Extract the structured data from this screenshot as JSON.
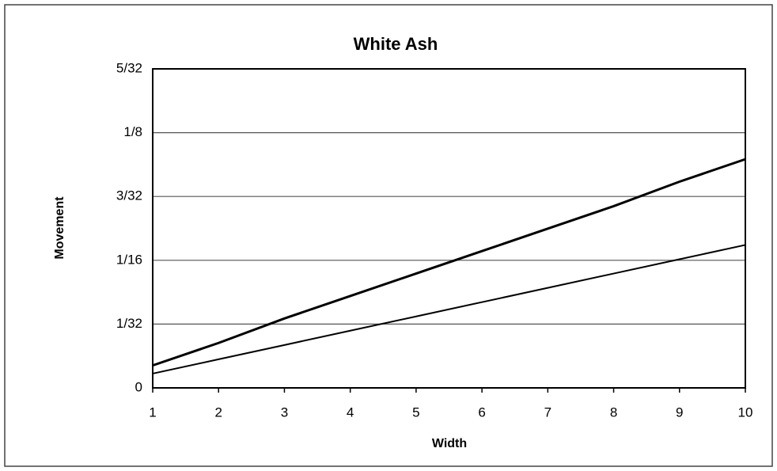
{
  "chart_data": {
    "type": "line",
    "title": "White Ash",
    "xlabel": "Width",
    "ylabel": "Movement",
    "x": [
      1,
      2,
      3,
      4,
      5,
      6,
      7,
      8,
      9,
      10
    ],
    "series": [
      {
        "color": "#000000",
        "values": [
          0.011,
          0.022,
          0.034,
          0.045,
          0.056,
          0.067,
          0.078,
          0.089,
          0.101,
          0.112
        ]
      },
      {
        "color": "#000000",
        "values": [
          0.007,
          0.014,
          0.021,
          0.028,
          0.035,
          0.042,
          0.049,
          0.056,
          0.063,
          0.07
        ]
      }
    ],
    "xlim": [
      1,
      10
    ],
    "xticks": [
      1,
      2,
      3,
      4,
      5,
      6,
      7,
      8,
      9,
      10
    ],
    "ylim": [
      0,
      0.15625
    ],
    "yticks": [
      0,
      {
        "value": 0.03125,
        "label": "1/32"
      },
      {
        "value": 0.0625,
        "label": "1/16"
      },
      {
        "value": 0.09375,
        "label": "3/32"
      },
      {
        "value": 0.125,
        "label": "1/8"
      },
      {
        "value": 0.15625,
        "label": "5/32"
      }
    ],
    "grid": true
  }
}
